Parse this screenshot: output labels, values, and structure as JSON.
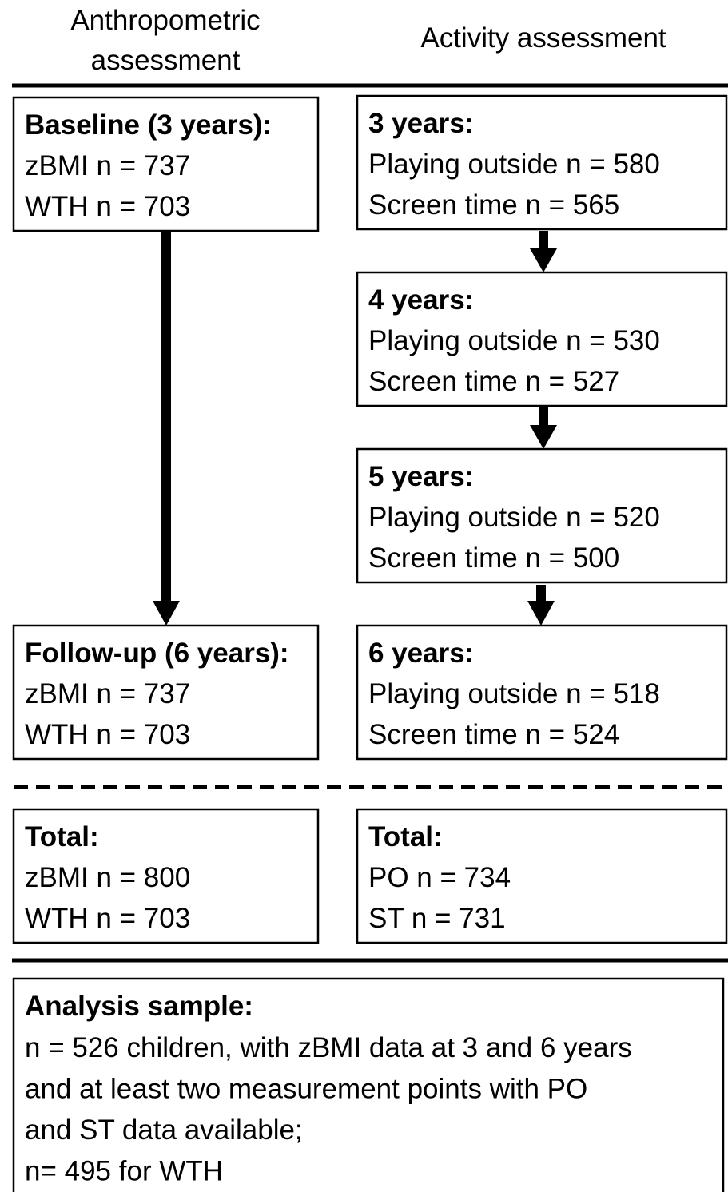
{
  "header": {
    "left": [
      "Anthropometric",
      "assessment"
    ],
    "right": "Activity assessment"
  },
  "left_boxes": [
    {
      "title": "Baseline (3 years):",
      "lines": [
        "zBMI n = 737",
        "WTH n = 703"
      ]
    },
    {
      "title": "Follow-up (6 years):",
      "lines": [
        "zBMI n = 737",
        "WTH n = 703"
      ]
    },
    {
      "title": "Total:",
      "lines": [
        "zBMI n = 800",
        "WTH n = 703"
      ]
    }
  ],
  "right_boxes": [
    {
      "title": "3 years:",
      "lines": [
        "Playing outside n = 580",
        "Screen time n = 565"
      ]
    },
    {
      "title": "4 years:",
      "lines": [
        "Playing outside n = 530",
        "Screen time n = 527"
      ]
    },
    {
      "title": "5 years:",
      "lines": [
        "Playing outside n = 520",
        "Screen time n = 500"
      ]
    },
    {
      "title": "6 years:",
      "lines": [
        "Playing outside n = 518",
        "Screen time n = 524"
      ]
    },
    {
      "title": "Total:",
      "lines": [
        "PO n = 734",
        "ST n = 731"
      ]
    }
  ],
  "analysis": {
    "title": "Analysis sample:",
    "lines": [
      "n = 526 children, with zBMI data at 3 and 6 years",
      "and at least two measurement points with PO",
      "and ST data available;",
      "n=  495 for WTH"
    ]
  }
}
